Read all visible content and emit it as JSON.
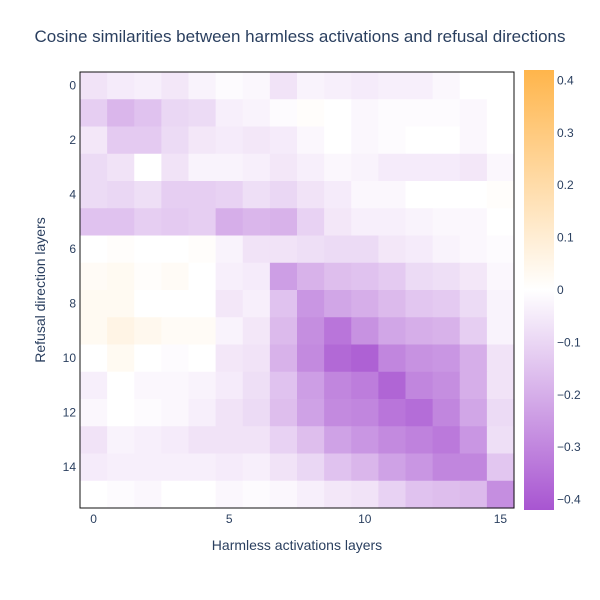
{
  "chart_data": {
    "type": "heatmap",
    "title": "Cosine similarities between harmless activations and refusal directions",
    "xlabel": "Harmless activations layers",
    "ylabel": "Refusal direction layers",
    "x_ticks": [
      0,
      5,
      10,
      15
    ],
    "y_ticks": [
      0,
      2,
      4,
      6,
      8,
      10,
      12,
      14
    ],
    "x_range": [
      0,
      15
    ],
    "y_range": [
      0,
      15
    ],
    "y_reversed": true,
    "colorbar": {
      "range": [
        -0.42,
        0.42
      ],
      "ticks": [
        0.4,
        0.3,
        0.2,
        0.1,
        0,
        -0.1,
        -0.2,
        -0.3,
        -0.4
      ],
      "tick_labels": [
        "0.4",
        "0.3",
        "0.2",
        "0.1",
        "0",
        "−0.1",
        "−0.2",
        "−0.3",
        "−0.4"
      ],
      "colorscale": [
        [
          0,
          "#a855d1"
        ],
        [
          0.5,
          "#ffffff"
        ],
        [
          1,
          "#ffb54b"
        ]
      ]
    },
    "z": [
      [
        -0.07,
        -0.05,
        -0.04,
        -0.06,
        -0.03,
        -0.01,
        -0.02,
        -0.07,
        -0.03,
        -0.04,
        -0.05,
        -0.04,
        -0.04,
        -0.02,
        0.0,
        0.0
      ],
      [
        -0.12,
        -0.18,
        -0.15,
        -0.1,
        -0.09,
        -0.04,
        -0.03,
        -0.01,
        0.01,
        0.0,
        -0.02,
        -0.01,
        -0.01,
        -0.01,
        -0.02,
        0.0
      ],
      [
        -0.06,
        -0.13,
        -0.13,
        -0.09,
        -0.06,
        -0.05,
        -0.06,
        -0.05,
        -0.02,
        0.0,
        -0.02,
        -0.01,
        0.0,
        0.0,
        -0.02,
        0.0
      ],
      [
        -0.09,
        -0.07,
        0.0,
        -0.07,
        -0.03,
        -0.03,
        -0.04,
        -0.06,
        -0.04,
        -0.02,
        -0.03,
        -0.05,
        -0.05,
        -0.05,
        -0.06,
        -0.02
      ],
      [
        -0.09,
        -0.1,
        -0.08,
        -0.12,
        -0.12,
        -0.11,
        -0.08,
        -0.1,
        -0.07,
        -0.05,
        -0.02,
        -0.02,
        0.0,
        0.0,
        0.0,
        0.01
      ],
      [
        -0.15,
        -0.15,
        -0.12,
        -0.13,
        -0.12,
        -0.2,
        -0.18,
        -0.19,
        -0.11,
        -0.06,
        -0.04,
        -0.04,
        -0.03,
        -0.02,
        -0.02,
        0.0
      ],
      [
        0.0,
        0.01,
        0.0,
        0.0,
        0.01,
        -0.03,
        -0.07,
        -0.07,
        -0.08,
        -0.09,
        -0.09,
        -0.06,
        -0.05,
        -0.03,
        -0.02,
        -0.01
      ],
      [
        0.02,
        0.03,
        0.01,
        0.02,
        0.0,
        -0.04,
        -0.05,
        -0.24,
        -0.19,
        -0.16,
        -0.15,
        -0.13,
        -0.09,
        -0.08,
        -0.06,
        -0.02
      ],
      [
        0.03,
        0.03,
        0.0,
        0.0,
        0.0,
        -0.06,
        -0.04,
        -0.15,
        -0.26,
        -0.22,
        -0.2,
        -0.17,
        -0.14,
        -0.13,
        -0.09,
        -0.03
      ],
      [
        0.03,
        0.06,
        0.04,
        0.02,
        0.02,
        -0.03,
        -0.06,
        -0.17,
        -0.28,
        -0.34,
        -0.27,
        -0.22,
        -0.2,
        -0.19,
        -0.12,
        -0.03
      ],
      [
        0.0,
        0.03,
        0.0,
        -0.01,
        0.0,
        -0.06,
        -0.07,
        -0.19,
        -0.29,
        -0.37,
        -0.39,
        -0.3,
        -0.27,
        -0.26,
        -0.2,
        -0.07
      ],
      [
        -0.04,
        0.0,
        -0.02,
        -0.02,
        -0.03,
        -0.05,
        -0.08,
        -0.15,
        -0.24,
        -0.3,
        -0.32,
        -0.38,
        -0.3,
        -0.28,
        -0.2,
        -0.07
      ],
      [
        -0.02,
        0.0,
        -0.01,
        -0.02,
        -0.04,
        -0.07,
        -0.09,
        -0.16,
        -0.23,
        -0.29,
        -0.3,
        -0.34,
        -0.36,
        -0.3,
        -0.22,
        -0.09
      ],
      [
        -0.07,
        -0.03,
        -0.04,
        -0.05,
        -0.07,
        -0.07,
        -0.07,
        -0.11,
        -0.16,
        -0.23,
        -0.26,
        -0.29,
        -0.31,
        -0.33,
        -0.26,
        -0.08
      ],
      [
        -0.05,
        -0.04,
        -0.04,
        -0.04,
        -0.04,
        -0.05,
        -0.04,
        -0.07,
        -0.1,
        -0.15,
        -0.18,
        -0.23,
        -0.26,
        -0.3,
        -0.3,
        -0.14
      ],
      [
        0.0,
        -0.01,
        -0.02,
        0.0,
        0.0,
        -0.02,
        -0.01,
        -0.02,
        -0.04,
        -0.06,
        -0.07,
        -0.11,
        -0.15,
        -0.16,
        -0.17,
        -0.28
      ]
    ]
  }
}
